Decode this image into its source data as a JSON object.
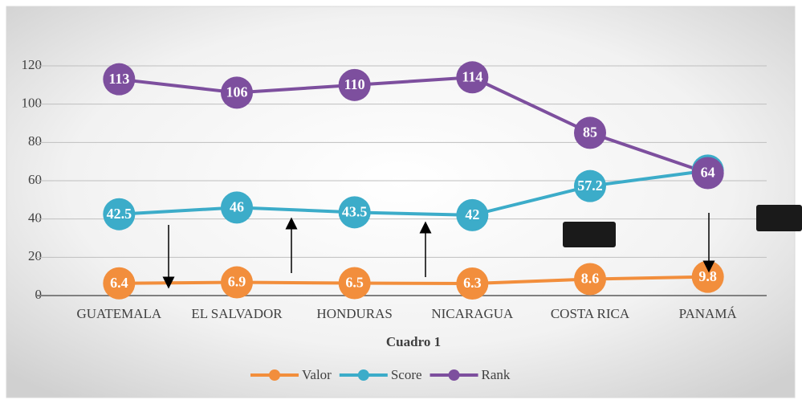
{
  "chart_data": {
    "type": "line",
    "x_axis_title": "Cuadro 1",
    "categories": [
      "GUATEMALA",
      "EL SALVADOR",
      "HONDURAS",
      "NICARAGUA",
      "COSTA RICA",
      "PANAMÁ"
    ],
    "series": [
      {
        "name": "Valor",
        "color": "#f28e3c",
        "values": [
          6.4,
          6.9,
          6.5,
          6.3,
          8.6,
          9.8
        ]
      },
      {
        "name": "Score",
        "color": "#3cacc9",
        "values": [
          42.5,
          46,
          43.5,
          42,
          57.2,
          65.3
        ]
      },
      {
        "name": "Rank",
        "color": "#7d4f9e",
        "values": [
          113,
          106,
          110,
          114,
          85,
          64
        ]
      }
    ],
    "ylim": [
      0,
      120
    ],
    "yticks": [
      0,
      20,
      40,
      60,
      80,
      100,
      120
    ],
    "grid": true,
    "legend": "bottom"
  }
}
